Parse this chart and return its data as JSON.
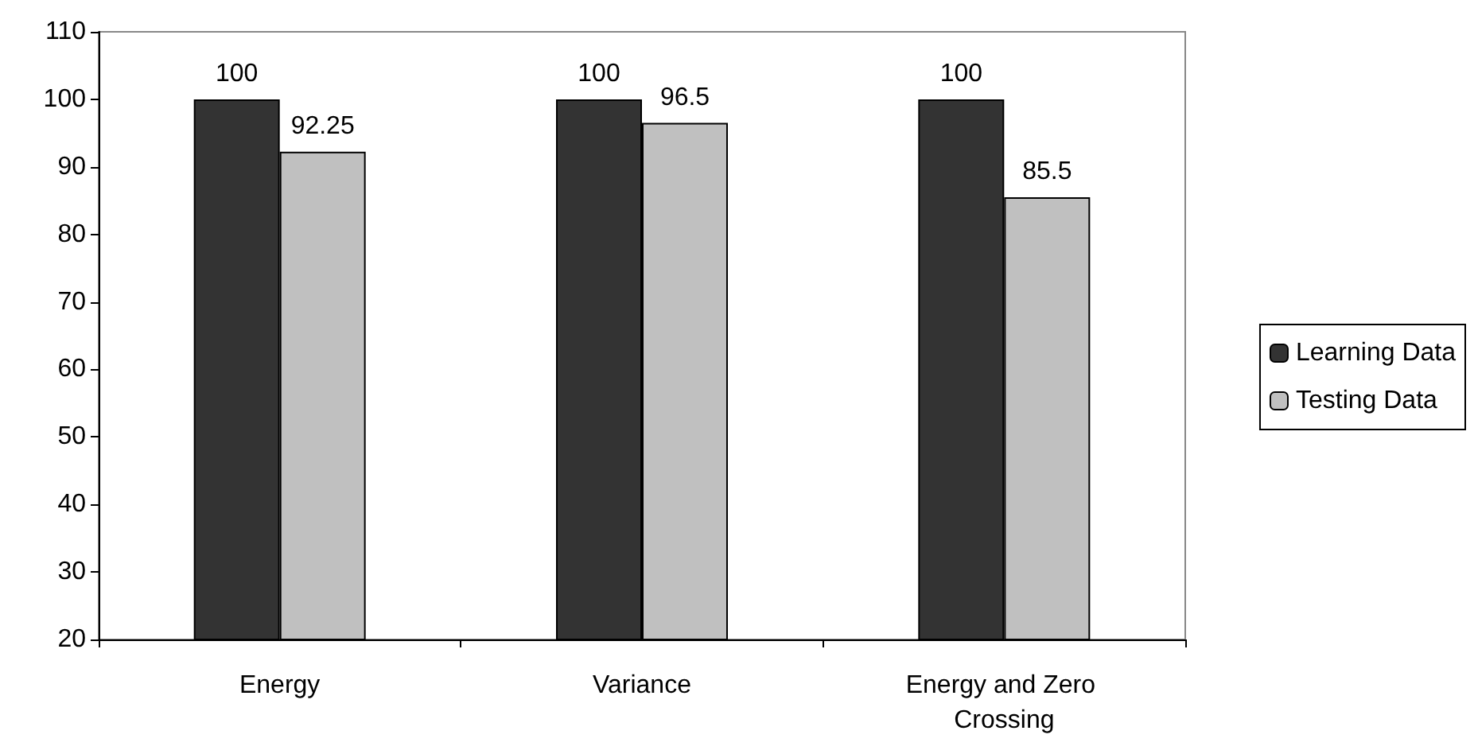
{
  "chart_data": {
    "type": "bar",
    "categories": [
      "Energy",
      "Variance",
      "Energy and Zero Crossing"
    ],
    "series": [
      {
        "name": "Learning Data",
        "color": "#333333",
        "values": [
          100,
          100,
          100
        ]
      },
      {
        "name": "Testing Data",
        "color": "#c0c0c0",
        "values": [
          92.25,
          96.5,
          85.5
        ]
      }
    ],
    "ylim": [
      20,
      110
    ],
    "yticks": [
      20,
      30,
      40,
      50,
      60,
      70,
      80,
      90,
      100,
      110
    ],
    "grid": false,
    "legend": "right",
    "data_labels": true
  }
}
